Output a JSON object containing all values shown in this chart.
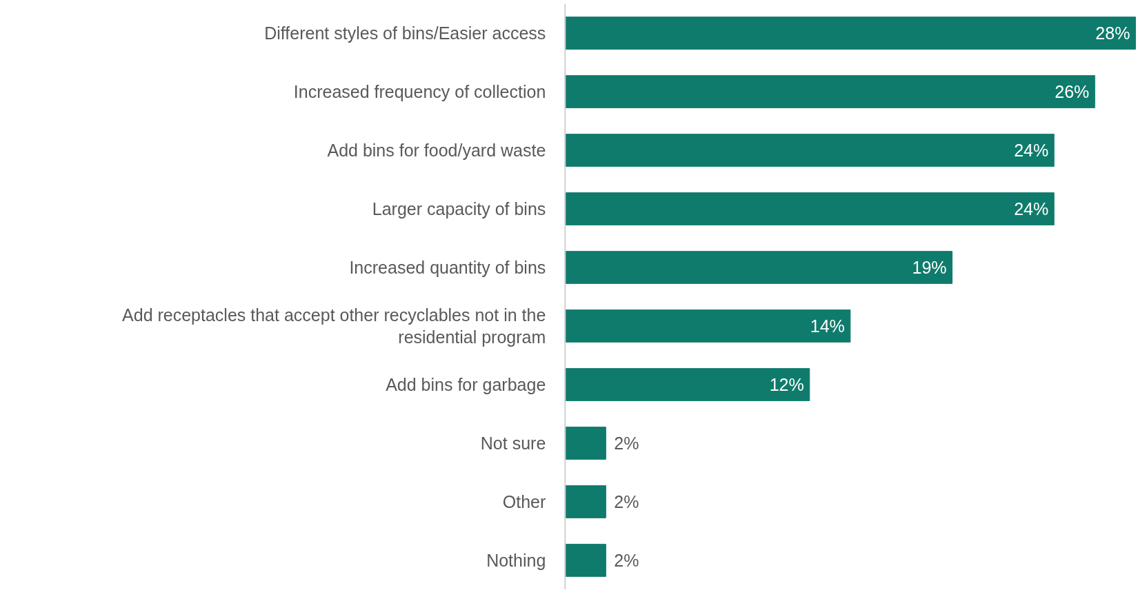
{
  "chart_data": {
    "type": "bar",
    "orientation": "horizontal",
    "value_labels": [
      "28%",
      "26%",
      "24%",
      "24%",
      "19%",
      "14%",
      "12%",
      "2%",
      "2%",
      "2%"
    ],
    "color": "#0f7b6c",
    "categories": [
      "Different styles of bins/Easier access",
      "Increased frequency of collection",
      "Add bins for food/yard waste",
      "Larger capacity of bins",
      "Increased quantity of bins",
      "Add receptacles that accept other recyclables not in the residential program",
      "Add bins for garbage",
      "Not sure",
      "Other",
      "Nothing"
    ],
    "values": [
      28,
      26,
      24,
      24,
      19,
      14,
      12,
      2,
      2,
      2
    ]
  }
}
